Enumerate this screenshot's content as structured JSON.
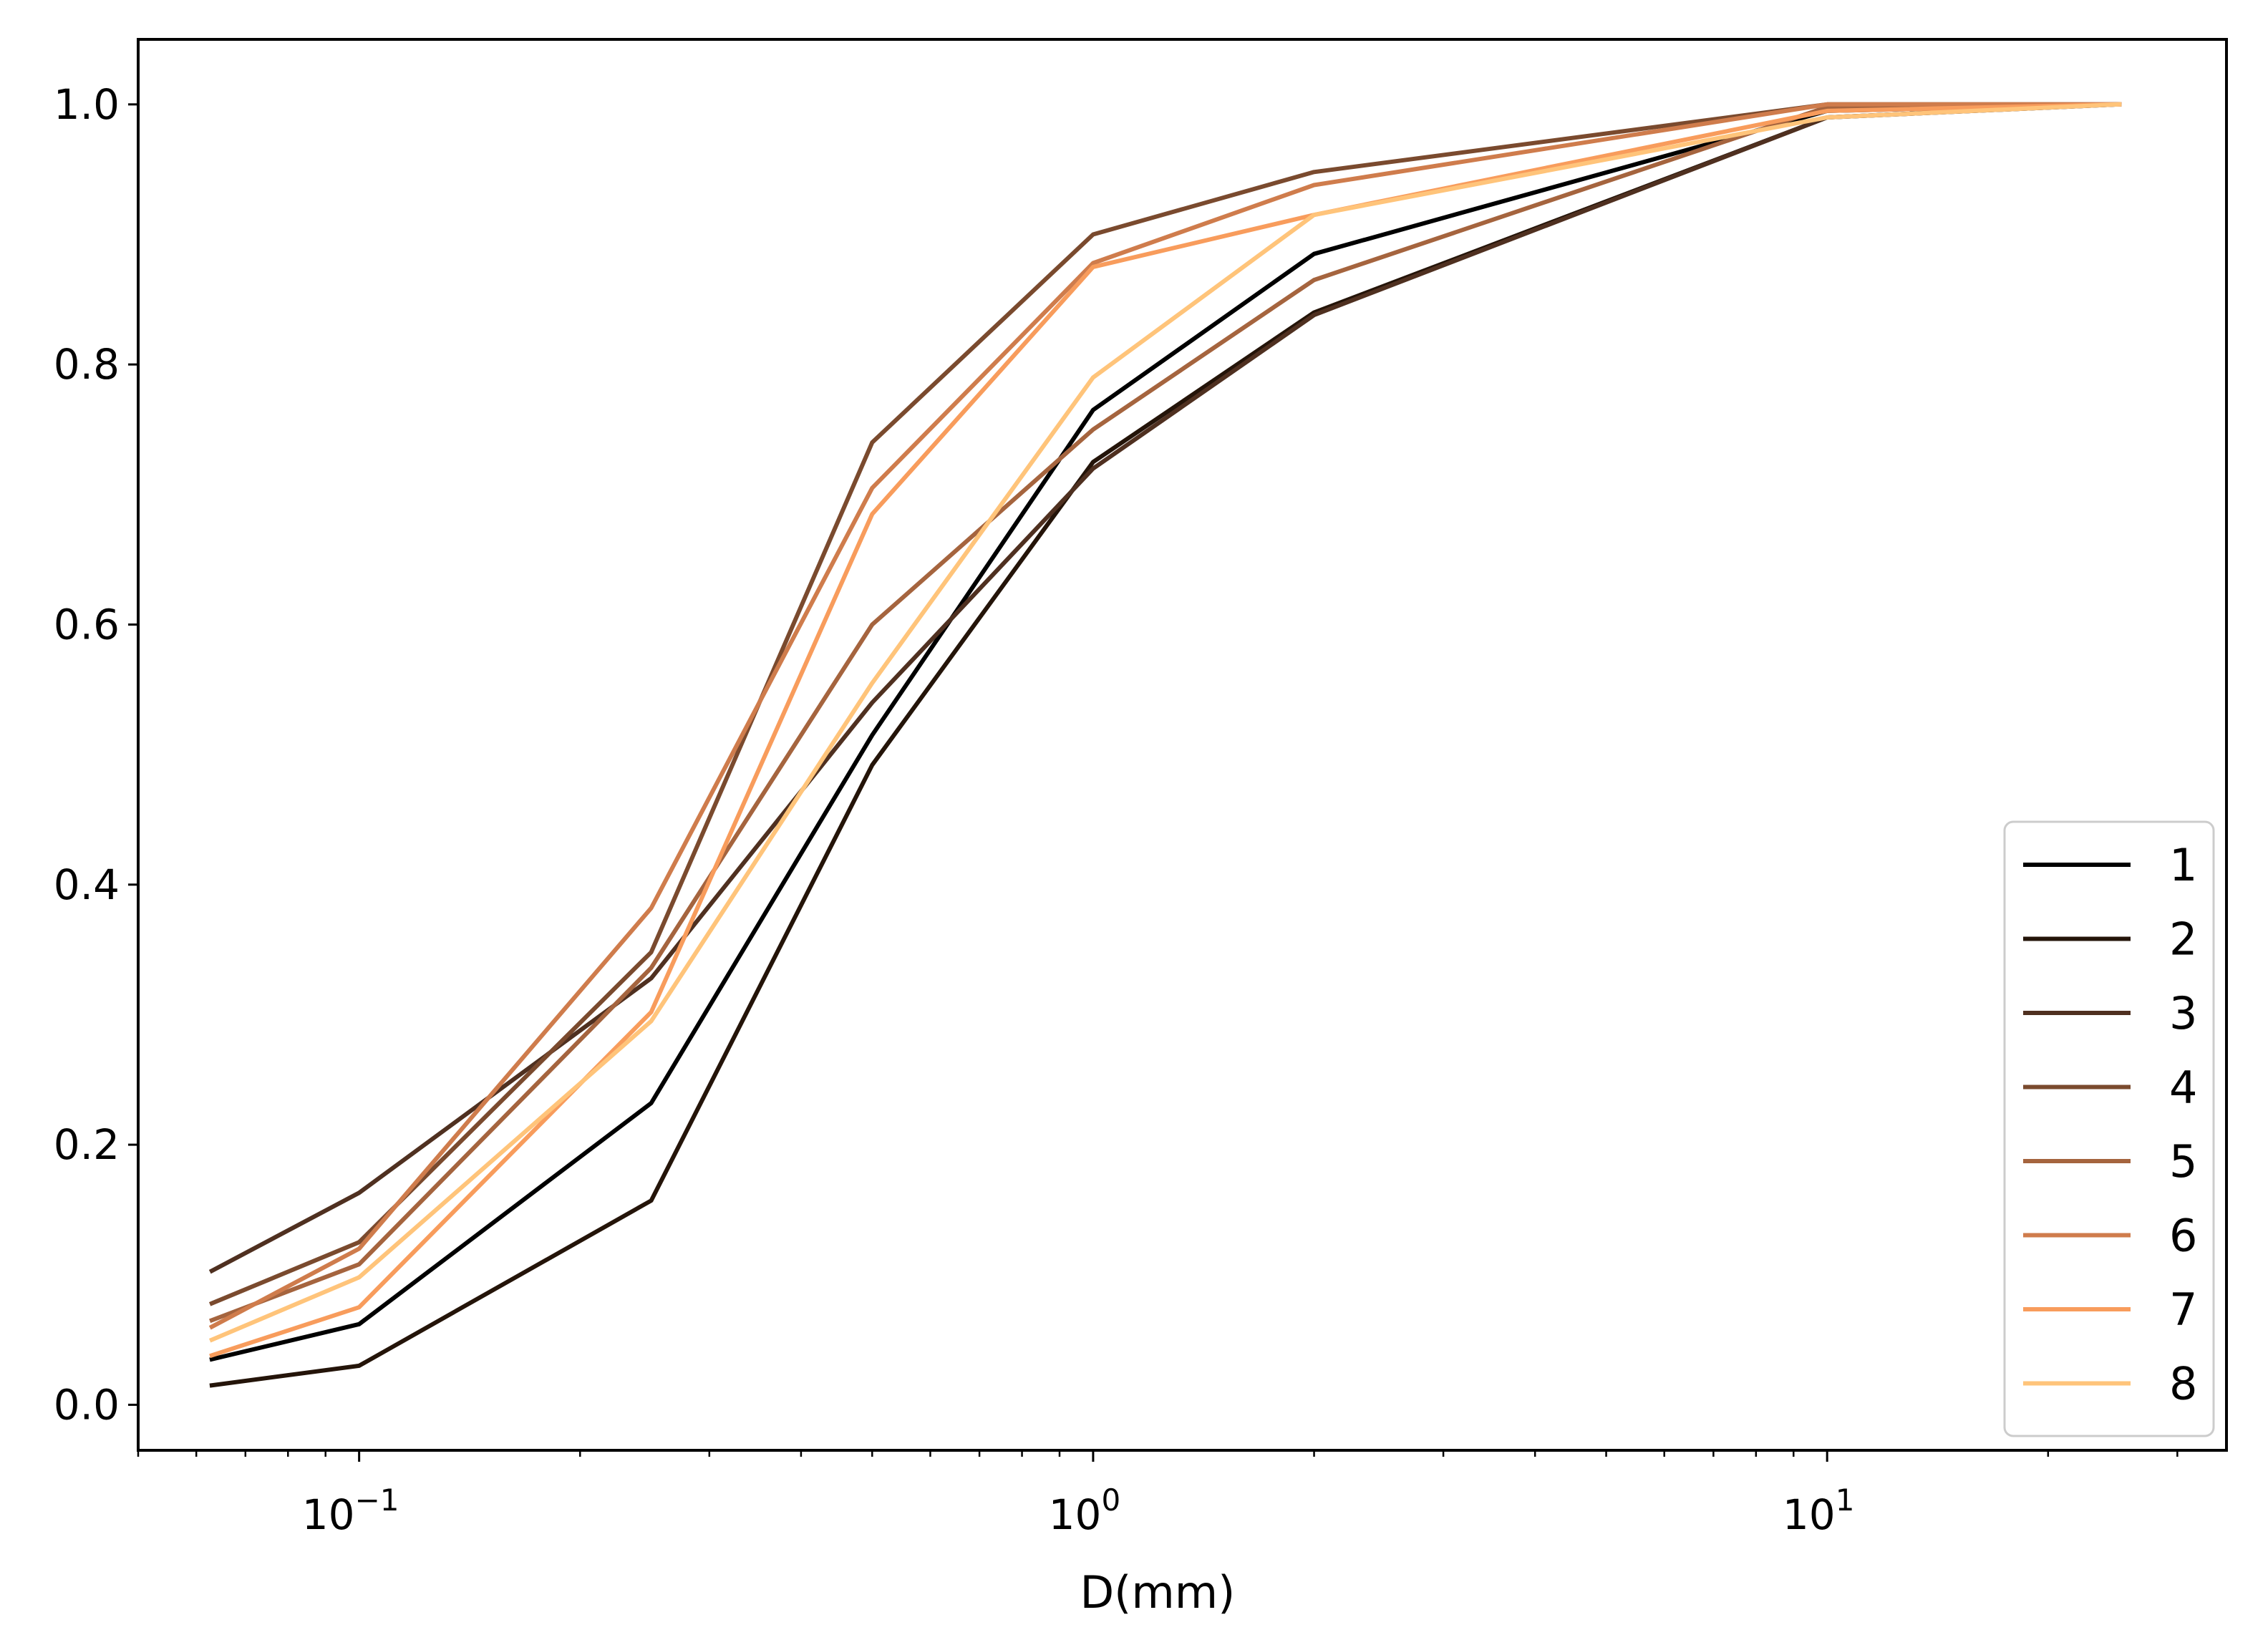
{
  "chart_data": {
    "type": "line",
    "title": "",
    "xlabel": "D(mm)",
    "ylabel": "",
    "xscale": "log",
    "xlim": [
      0.05,
      35
    ],
    "ylim": [
      -0.035,
      1.05
    ],
    "grid": false,
    "legend_position": "lower-right",
    "x": [
      0.063,
      0.1,
      0.25,
      0.5,
      1.0,
      2.0,
      10.0,
      25.0
    ],
    "y_ticks": [
      {
        "value": 0.0,
        "label": "0.0"
      },
      {
        "value": 0.2,
        "label": "0.2"
      },
      {
        "value": 0.4,
        "label": "0.4"
      },
      {
        "value": 0.6,
        "label": "0.6"
      },
      {
        "value": 0.8,
        "label": "0.8"
      },
      {
        "value": 1.0,
        "label": "1.0"
      }
    ],
    "x_ticks": [
      {
        "value": 0.1,
        "base": "10",
        "exp": "−1"
      },
      {
        "value": 1,
        "base": "10",
        "exp": "0"
      },
      {
        "value": 10,
        "base": "10",
        "exp": "1"
      }
    ],
    "series": [
      {
        "name": "1",
        "color": "#000000",
        "values": [
          0.035,
          0.062,
          0.232,
          0.515,
          0.765,
          0.885,
          0.995,
          1.0
        ]
      },
      {
        "name": "2",
        "color": "#241409",
        "values": [
          0.015,
          0.03,
          0.157,
          0.492,
          0.725,
          0.84,
          0.99,
          1.0
        ]
      },
      {
        "name": "3",
        "color": "#4f3020",
        "values": [
          0.103,
          0.163,
          0.328,
          0.54,
          0.72,
          0.838,
          0.99,
          1.0
        ]
      },
      {
        "name": "4",
        "color": "#7a4a2e",
        "values": [
          0.078,
          0.125,
          0.348,
          0.74,
          0.9,
          0.948,
          1.0,
          1.0
        ]
      },
      {
        "name": "5",
        "color": "#a5643e",
        "values": [
          0.065,
          0.108,
          0.336,
          0.6,
          0.75,
          0.865,
          0.998,
          1.0
        ]
      },
      {
        "name": "6",
        "color": "#cf7c4c",
        "values": [
          0.06,
          0.12,
          0.382,
          0.705,
          0.878,
          0.938,
          1.0,
          1.0
        ]
      },
      {
        "name": "7",
        "color": "#f89c5c",
        "values": [
          0.038,
          0.075,
          0.302,
          0.685,
          0.875,
          0.915,
          0.995,
          1.0
        ]
      },
      {
        "name": "8",
        "color": "#ffc47a",
        "values": [
          0.05,
          0.098,
          0.295,
          0.555,
          0.79,
          0.915,
          0.99,
          1.0
        ]
      }
    ]
  }
}
